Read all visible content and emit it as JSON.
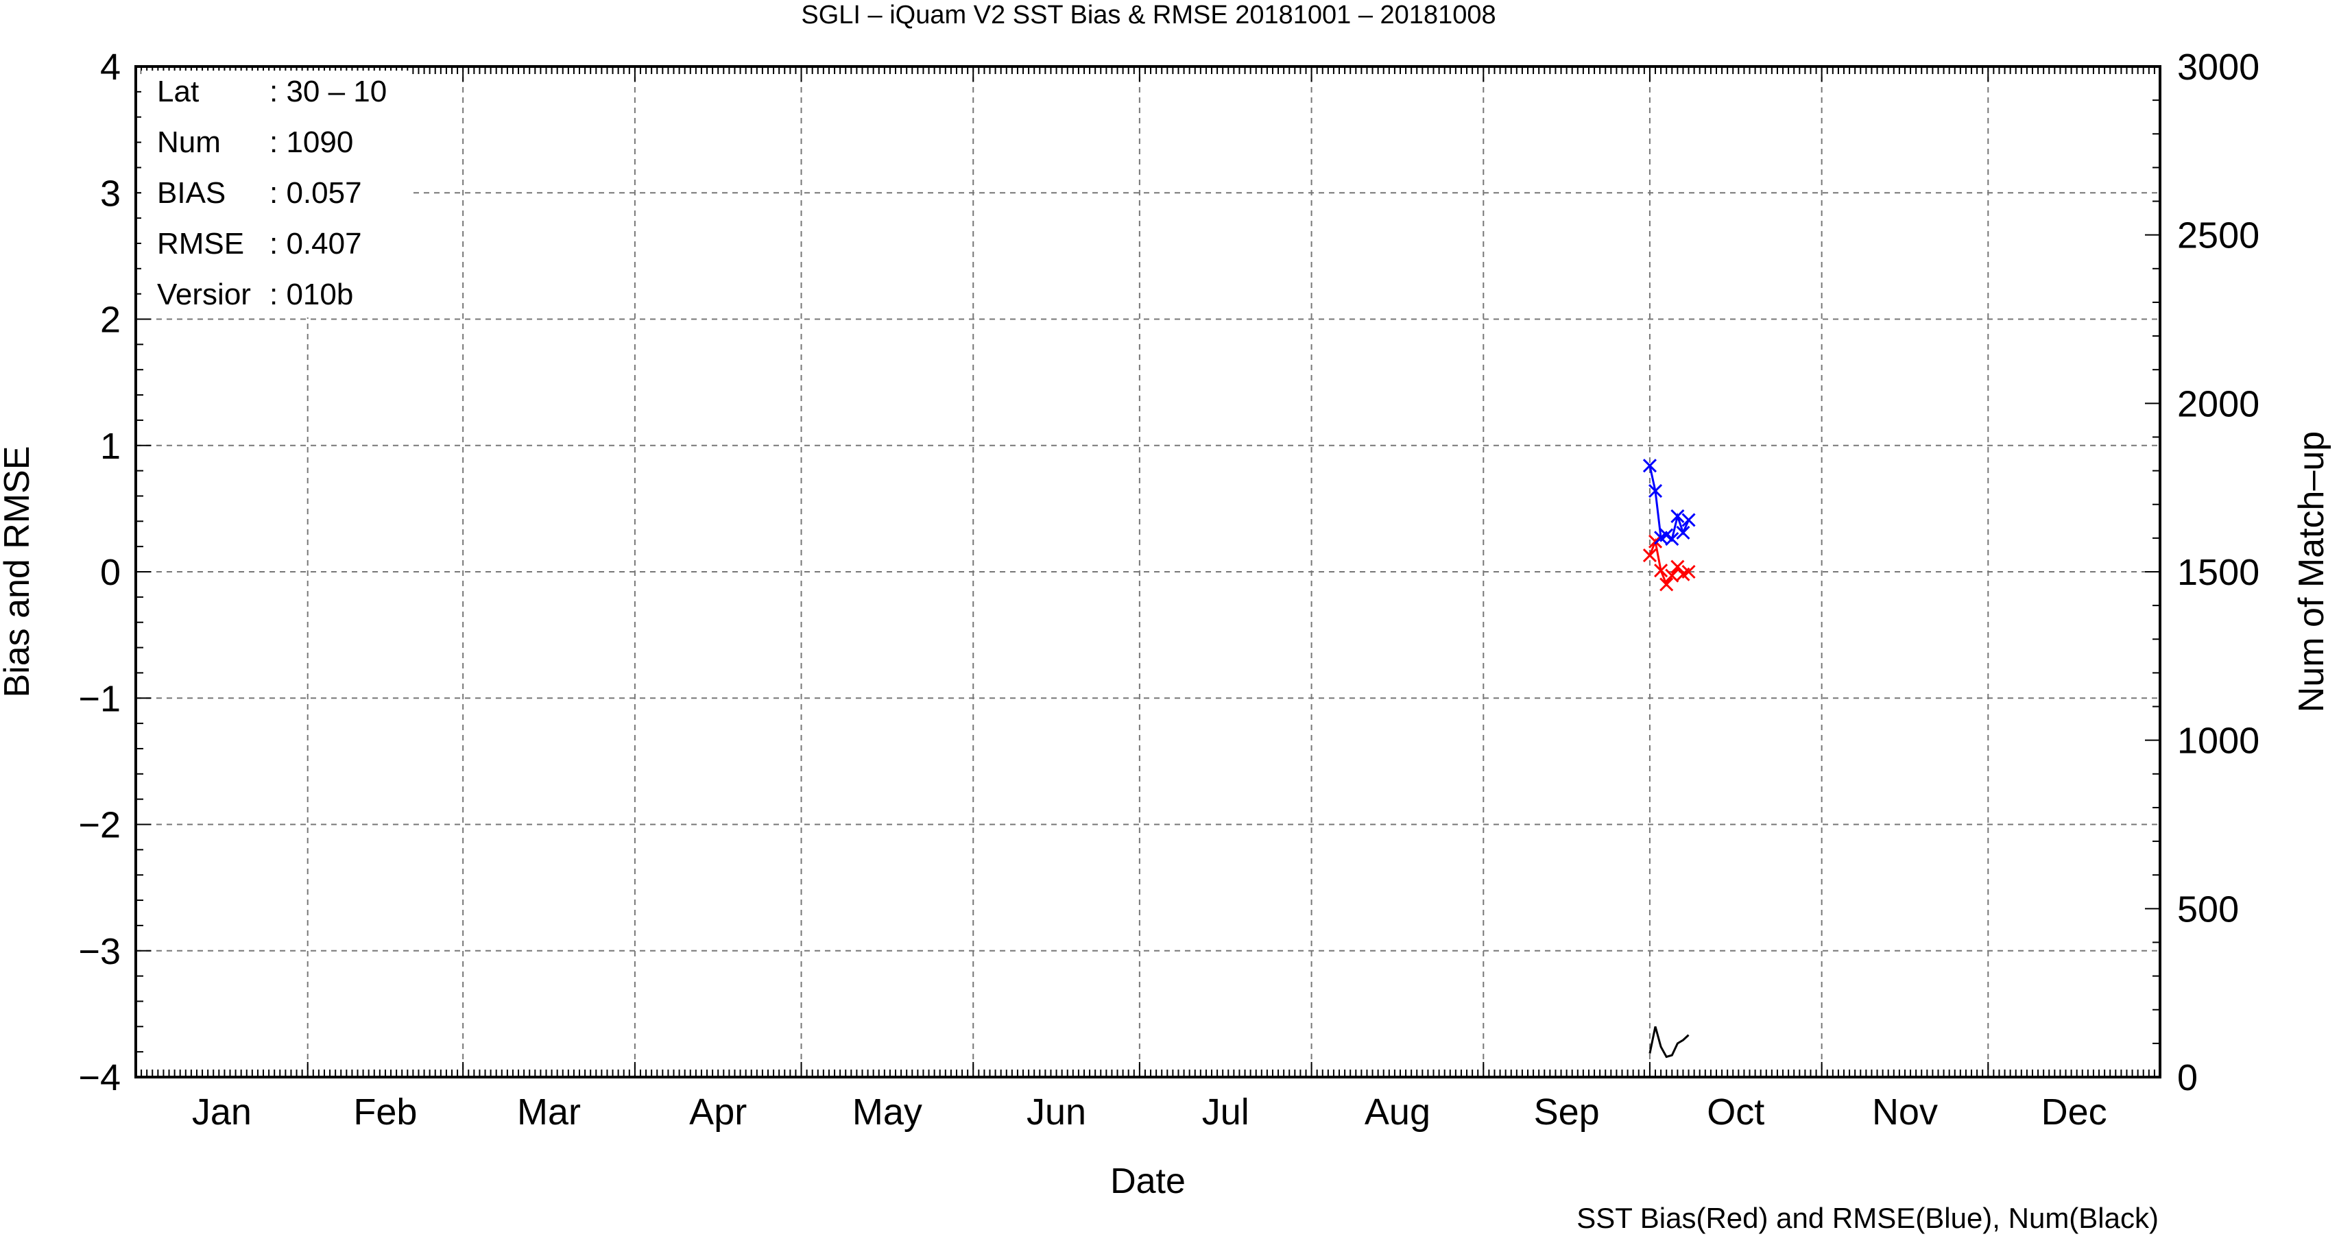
{
  "chart_data": {
    "type": "line",
    "title": "SGLI – iQuam V2 SST Bias & RMSE 20181001 – 20181008",
    "xlabel": "Date",
    "ylabel_left": "Bias and RMSE",
    "ylabel_right": "Num of Match–up",
    "footnote": "SST Bias(Red) and RMSE(Blue), Num(Black)",
    "xlim_day_of_year": [
      1,
      366
    ],
    "ylim_left": [
      -4,
      4
    ],
    "ylim_right": [
      0,
      3000
    ],
    "grid": true,
    "month_labels": [
      "Jan",
      "Feb",
      "Mar",
      "Apr",
      "May",
      "Jun",
      "Jul",
      "Aug",
      "Sep",
      "Oct",
      "Nov",
      "Dec"
    ],
    "left_ticks": [
      "4",
      "3",
      "2",
      "1",
      "0",
      "−1",
      "−2",
      "−3",
      "−4"
    ],
    "right_ticks": [
      "3000",
      "2500",
      "2000",
      "1500",
      "1000",
      "500",
      "0"
    ],
    "stats": [
      {
        "key": "Lat",
        "value": ": 30 – 10"
      },
      {
        "key": "Num",
        "value": ": 1090"
      },
      {
        "key": "BIAS",
        "value": ": 0.057"
      },
      {
        "key": "RMSE",
        "value": ": 0.407"
      },
      {
        "key": "Versior",
        "value": ": 010b"
      }
    ],
    "series": [
      {
        "name": "Bias",
        "color": "#ff0000",
        "axis": "left",
        "marker": "x",
        "x": [
          "2018-10-01",
          "2018-10-02",
          "2018-10-03",
          "2018-10-04",
          "2018-10-05",
          "2018-10-06",
          "2018-10-07",
          "2018-10-08"
        ],
        "y": [
          0.13,
          0.24,
          0.01,
          -0.1,
          -0.03,
          0.04,
          -0.02,
          0.0
        ]
      },
      {
        "name": "RMSE",
        "color": "#0000ff",
        "axis": "left",
        "marker": "x",
        "x": [
          "2018-10-01",
          "2018-10-02",
          "2018-10-03",
          "2018-10-04",
          "2018-10-05",
          "2018-10-06",
          "2018-10-07",
          "2018-10-08"
        ],
        "y": [
          0.84,
          0.64,
          0.27,
          0.29,
          0.26,
          0.44,
          0.31,
          0.41
        ]
      },
      {
        "name": "Num",
        "color": "#000000",
        "axis": "right",
        "marker": "none",
        "x": [
          "2018-10-01",
          "2018-10-02",
          "2018-10-03",
          "2018-10-04",
          "2018-10-05",
          "2018-10-06",
          "2018-10-07",
          "2018-10-08"
        ],
        "y": [
          70,
          150,
          90,
          60,
          65,
          100,
          110,
          125
        ]
      }
    ]
  }
}
